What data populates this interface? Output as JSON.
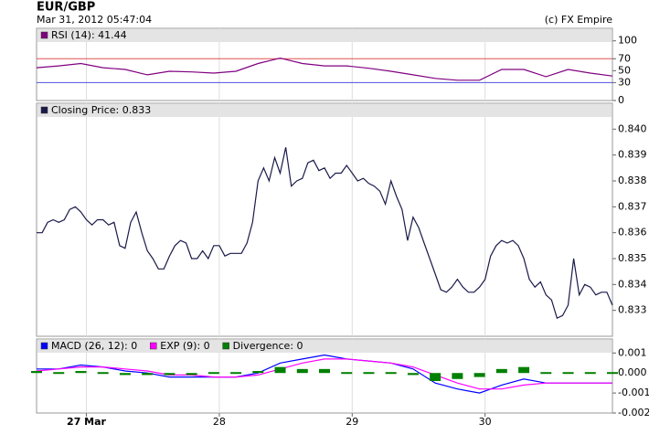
{
  "header": {
    "title": "EUR/GBP",
    "timestamp": "Mar 31, 2012 05:47:04",
    "credit": "(c) FX Empire"
  },
  "chart_data": [
    {
      "type": "line",
      "grid": "x",
      "x": [
        -9,
        -5,
        -1,
        3,
        7,
        11,
        15,
        19,
        23,
        27,
        31,
        35,
        39,
        43,
        47,
        51,
        55,
        59,
        63,
        67,
        71,
        75,
        79,
        83,
        87,
        91,
        95
      ],
      "xlim": [
        -9,
        95
      ],
      "series": [
        {
          "name": "RSI (14): 41.44",
          "color": "#800080",
          "values": [
            55,
            58,
            62,
            55,
            52,
            43,
            49,
            48,
            46,
            49,
            62,
            71,
            62,
            58,
            58,
            54,
            49,
            43,
            37,
            34,
            34,
            52,
            52,
            40,
            52,
            46,
            41
          ]
        }
      ],
      "ylim": [
        0,
        121
      ],
      "yticks": [
        0,
        {
          "value": 30,
          "label": "30",
          "color": "#5050e0"
        },
        50,
        {
          "value": 70,
          "label": "70",
          "color": "#e05050"
        },
        100
      ],
      "ref_lines": [
        {
          "value": 70,
          "color": "#e05050"
        },
        {
          "value": 30,
          "color": "#5050e0"
        }
      ]
    },
    {
      "type": "line",
      "grid": "x",
      "x": [
        -9,
        -8,
        -7,
        -6,
        -5,
        -4,
        -3,
        -2,
        -1,
        0,
        1,
        2,
        3,
        4,
        5,
        6,
        7,
        8,
        9,
        10,
        11,
        12,
        13,
        14,
        15,
        16,
        17,
        18,
        19,
        20,
        21,
        22,
        23,
        24,
        25,
        26,
        27,
        28,
        29,
        30,
        31,
        32,
        33,
        34,
        35,
        36,
        37,
        38,
        39,
        40,
        41,
        42,
        43,
        44,
        45,
        46,
        47,
        48,
        49,
        50,
        51,
        52,
        53,
        54,
        55,
        56,
        57,
        58,
        59,
        60,
        61,
        62,
        63,
        64,
        65,
        66,
        67,
        68,
        69,
        70,
        71,
        72,
        73,
        74,
        75,
        76,
        77,
        78,
        79,
        80,
        81,
        82,
        83,
        84,
        85,
        86,
        87,
        88,
        89,
        90,
        91,
        92,
        93,
        94,
        95
      ],
      "xlim": [
        -9,
        95
      ],
      "series": [
        {
          "name": "Closing Price: 0.833",
          "color": "#1a1a4a",
          "values": [
            0.836,
            0.836,
            0.8364,
            0.8365,
            0.8364,
            0.8365,
            0.8369,
            0.837,
            0.8368,
            0.8365,
            0.8363,
            0.8365,
            0.8365,
            0.8363,
            0.8364,
            0.8355,
            0.8354,
            0.8364,
            0.8368,
            0.836,
            0.8353,
            0.835,
            0.8346,
            0.8346,
            0.8351,
            0.8355,
            0.8357,
            0.8356,
            0.835,
            0.835,
            0.8353,
            0.835,
            0.8355,
            0.8355,
            0.8351,
            0.8352,
            0.8352,
            0.8352,
            0.8356,
            0.8364,
            0.838,
            0.8385,
            0.838,
            0.8389,
            0.8383,
            0.8393,
            0.8378,
            0.838,
            0.8381,
            0.8387,
            0.8388,
            0.8384,
            0.8385,
            0.8381,
            0.8383,
            0.8383,
            0.8386,
            0.8383,
            0.838,
            0.8381,
            0.8379,
            0.8378,
            0.8376,
            0.8371,
            0.838,
            0.8374,
            0.8369,
            0.8357,
            0.8366,
            0.8362,
            0.8356,
            0.835,
            0.8344,
            0.8338,
            0.8337,
            0.8339,
            0.8342,
            0.8339,
            0.8337,
            0.8337,
            0.8339,
            0.8342,
            0.8351,
            0.8355,
            0.8357,
            0.8356,
            0.8357,
            0.8355,
            0.835,
            0.8342,
            0.8339,
            0.8341,
            0.8336,
            0.8334,
            0.8327,
            0.8328,
            0.8332,
            0.835,
            0.8336,
            0.834,
            0.8339,
            0.8336,
            0.8337,
            0.8337,
            0.8332
          ]
        }
      ],
      "ylim": [
        0.832,
        0.841
      ],
      "yticks": [
        0.833,
        0.834,
        0.835,
        0.836,
        0.837,
        0.838,
        0.839,
        {
          "value": 0.84,
          "label": "0.840"
        }
      ]
    },
    {
      "type": "line",
      "grid": "x",
      "x": [
        -9,
        -5,
        -1,
        3,
        7,
        11,
        15,
        19,
        23,
        27,
        31,
        35,
        39,
        43,
        47,
        51,
        55,
        59,
        63,
        67,
        71,
        75,
        79,
        83,
        87,
        91,
        95
      ],
      "xlim": [
        -9,
        95
      ],
      "xticks": [
        {
          "value": 0,
          "label": "27 Mar"
        },
        {
          "value": 24,
          "label": "28"
        },
        {
          "value": 48,
          "label": "29"
        },
        {
          "value": 72,
          "label": "30"
        }
      ],
      "series": [
        {
          "name": "MACD (26, 12): 0",
          "color": "#0000ff",
          "values": [
            0.0002,
            0.0002,
            0.0004,
            0.0003,
            0.0001,
            0,
            -0.0002,
            -0.0002,
            -0.0002,
            -0.0002,
            0,
            0.0005,
            0.0007,
            0.0009,
            0.0007,
            0.0006,
            0.0005,
            0.0002,
            -0.0005,
            -0.0008,
            -0.001,
            -0.0006,
            -0.0003,
            -0.0005,
            -0.0005,
            -0.0005,
            -0.0005
          ]
        },
        {
          "name": "EXP (9): 0",
          "color": "#ff00ff",
          "values": [
            0.0001,
            0.0002,
            0.0003,
            0.0003,
            0.0002,
            0.0001,
            -0.0001,
            -0.0001,
            -0.0002,
            -0.0002,
            -0.0001,
            0.0002,
            0.0005,
            0.0007,
            0.0007,
            0.0006,
            0.0005,
            0.0003,
            -0.0001,
            -0.0005,
            -0.0008,
            -0.0008,
            -0.0006,
            -0.0005,
            -0.0005,
            -0.0005,
            -0.0005
          ]
        },
        {
          "name": "Divergence: 0",
          "color": "#008000",
          "type": "bar",
          "values": [
            0.0001,
            0,
            0.0001,
            0,
            -0.0001,
            -0.0001,
            -0.0001,
            -0.0001,
            0,
            0,
            0.0001,
            0.0003,
            0.0002,
            0.0002,
            0,
            0,
            0,
            -0.0001,
            -0.0004,
            -0.0003,
            -0.0002,
            0.0002,
            0.0003,
            0,
            0,
            0,
            0
          ]
        }
      ],
      "ylim": [
        -0.002,
        0.0017
      ],
      "yticks": [
        -0.002,
        -0.001,
        {
          "value": 0,
          "label": "0.000"
        },
        0.001
      ]
    }
  ]
}
